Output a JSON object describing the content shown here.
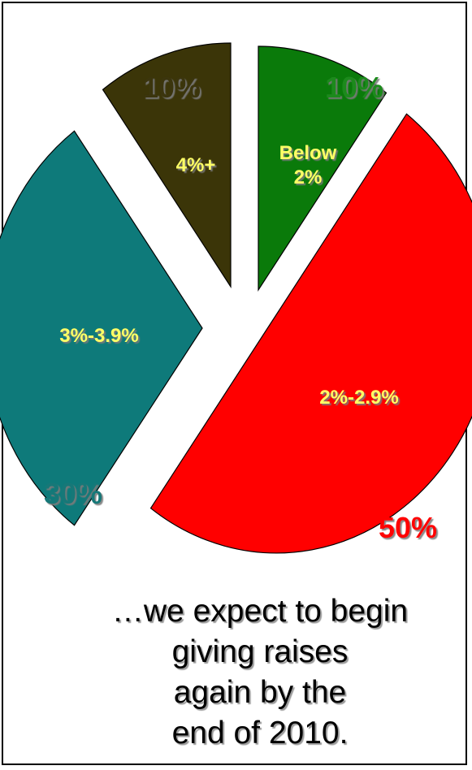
{
  "chart_data": {
    "type": "pie",
    "slices": [
      {
        "label": "Below 2%",
        "value": 10,
        "value_label": "10%",
        "color": "#0a7a0a",
        "value_color": "#1e8a1e"
      },
      {
        "label": "2%-2.9%",
        "value": 50,
        "value_label": "50%",
        "color": "#ff0000",
        "value_color": "#ff0000"
      },
      {
        "label": "3%-3.9%",
        "value": 30,
        "value_label": "30%",
        "color": "#0e7a7a",
        "value_color": "#167878"
      },
      {
        "label": "4%+",
        "value": 10,
        "value_label": "10%",
        "color": "#3b3508",
        "value_color": "#3b3508"
      }
    ],
    "inner_label_color": "#ffff66",
    "exploded": true
  },
  "caption": {
    "line1": "…we expect to begin",
    "line2": "giving raises",
    "line3": "again by the",
    "line4": "end of 2010."
  }
}
